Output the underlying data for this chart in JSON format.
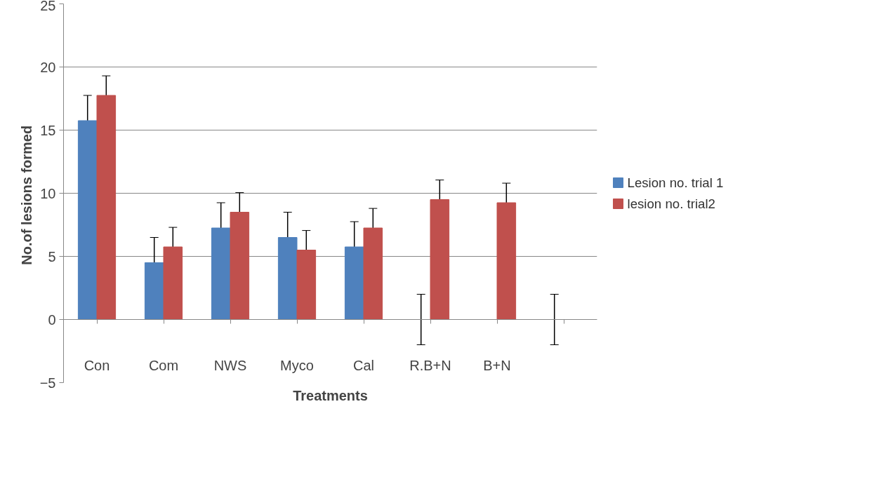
{
  "chart_data": {
    "type": "bar",
    "xlabel": "Treatments",
    "ylabel": "No.of lesions  formed",
    "categories": [
      "Con",
      "Com",
      "NWS",
      "Myco",
      "Cal",
      "R.B+N",
      "B+N",
      null
    ],
    "series": [
      {
        "name": "Lesion no. trial 1",
        "color": "#4f81bd",
        "values": [
          15.75,
          4.5,
          7.25,
          6.5,
          5.75,
          0,
          null,
          0
        ],
        "errors": [
          2,
          2,
          2,
          2,
          2,
          2,
          null,
          2
        ]
      },
      {
        "name": "lesion no. trial2",
        "color": "#c0504d",
        "values": [
          17.75,
          5.75,
          8.5,
          5.5,
          7.25,
          9.5,
          9.25,
          null
        ],
        "errors": [
          1.55,
          1.55,
          1.55,
          1.55,
          1.55,
          1.55,
          1.55,
          null
        ]
      }
    ],
    "ylim": [
      -5,
      25
    ],
    "yticks": [
      -5,
      0,
      5,
      10,
      15,
      20,
      25
    ],
    "grid": "y",
    "legend": "right"
  }
}
